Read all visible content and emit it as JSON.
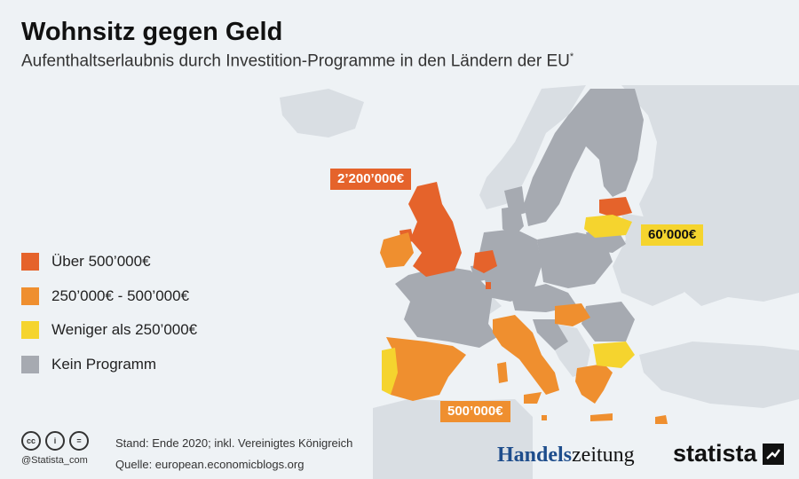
{
  "title": "Wohnsitz gegen Geld",
  "subtitle": "Aufenthaltserlaubnis durch Investition-Programme in den Ländern der EU",
  "subtitle_mark": "*",
  "colors": {
    "over_500k": "#e5632b",
    "mid": "#ef8f2f",
    "under_250k": "#f5d42e",
    "none": "#a6aab1",
    "non_eu": "#d9dee3",
    "sea": "#eef2f5"
  },
  "legend": [
    {
      "label": "Über 500’000€",
      "color": "#e5632b"
    },
    {
      "label": "250’000€ - 500’000€",
      "color": "#ef8f2f"
    },
    {
      "label": "Weniger als 250’000€",
      "color": "#f5d42e"
    },
    {
      "label": "Kein Programm",
      "color": "#a6aab1"
    }
  ],
  "callouts": {
    "uk": "2’200’000€",
    "latvia": "60’000€",
    "italy": "500’000€"
  },
  "footer": {
    "cc_icons": [
      "cc",
      "i",
      "="
    ],
    "handle": "@Statista_com",
    "note": "Stand: Ende 2020; inkl. Vereinigtes Königreich",
    "source": "Quelle: european.economicblogs.org",
    "logo_handelszeitung_a": "Handels",
    "logo_handelszeitung_b": "zeitung",
    "logo_statista": "statista"
  }
}
